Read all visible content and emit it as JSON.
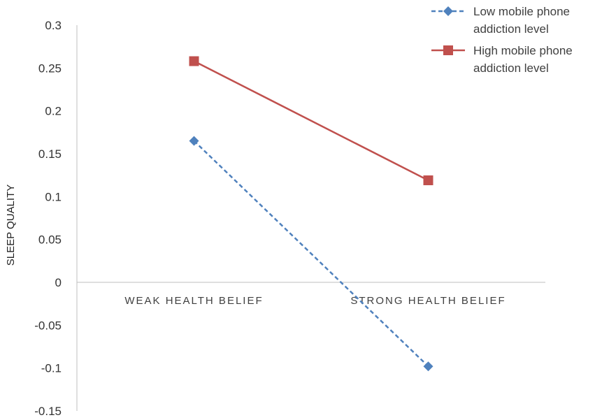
{
  "chart_data": {
    "type": "line",
    "categories": [
      "WEAK HEALTH BELIEF",
      "STRONG HEALTH BELIEF"
    ],
    "series": [
      {
        "name": "Low mobile phone addiction level",
        "name_lines": [
          "Low mobile phone",
          "addiction level"
        ],
        "values": [
          0.165,
          -0.098
        ],
        "color": "#4F81BD",
        "line_style": "dashed",
        "marker": "diamond"
      },
      {
        "name": "High mobile phone addiction level",
        "name_lines": [
          "High mobile phone",
          "addiction level"
        ],
        "values": [
          0.258,
          0.119
        ],
        "color": "#C0504D",
        "line_style": "solid",
        "marker": "square"
      }
    ],
    "title": "",
    "xlabel": "",
    "ylabel": "SLEEP QUALITY",
    "ylim": [
      -0.15,
      0.3
    ],
    "yticks": [
      0.3,
      0.25,
      0.2,
      0.15,
      0.1,
      0.05,
      0,
      -0.05,
      -0.1,
      -0.15
    ],
    "ytick_labels": [
      "0.3",
      "0.25",
      "0.2",
      "0.15",
      "0.1",
      "0.05",
      "0",
      "-0.05",
      "-0.1",
      "-0.15"
    ],
    "grid": false,
    "legend_position": "top-right"
  }
}
